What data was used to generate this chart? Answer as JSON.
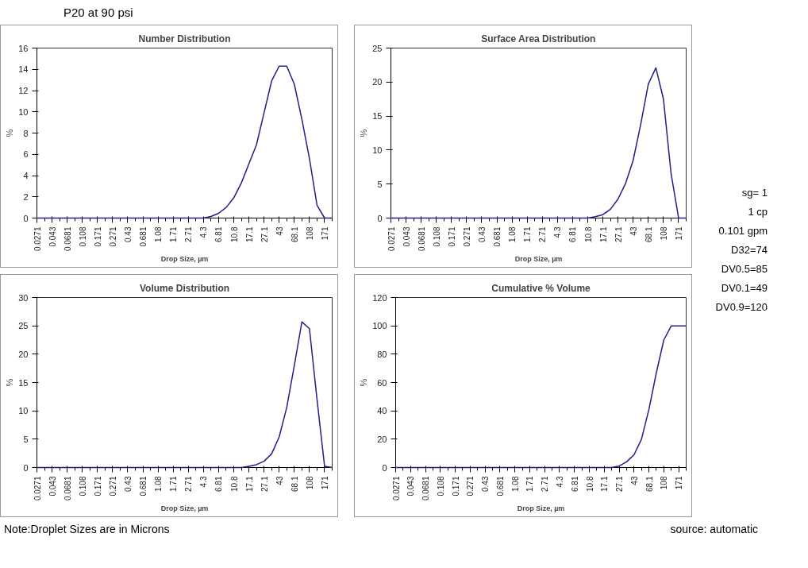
{
  "chart_data": [
    {
      "type": "other",
      "title": "P20 at  90 psi",
      "annotations": [
        "Note:Droplet Sizes are in Microns",
        "source: automatic"
      ]
    },
    {
      "type": "line",
      "title": "Number Distribution",
      "xlabel": "Drop Size, µm",
      "ylabel": "%",
      "categories": [
        "0.0271",
        null,
        "0.043",
        null,
        "0.0681",
        null,
        "0.108",
        null,
        "0.171",
        null,
        "0.271",
        null,
        "0.43",
        null,
        "0.681",
        null,
        "1.08",
        null,
        "1.71",
        null,
        "2.71",
        null,
        "4.3",
        null,
        "6.81",
        null,
        "10.8",
        null,
        "17.1",
        null,
        "27.1",
        null,
        "43",
        null,
        "68.1",
        null,
        "108",
        null,
        "171",
        null
      ],
      "series": [
        {
          "color": "#1f1f8f",
          "values": [
            0,
            0,
            0,
            0,
            0,
            0,
            0,
            0,
            0,
            0,
            0,
            0,
            0,
            0,
            0,
            0,
            0,
            0,
            0,
            0,
            0,
            0,
            0,
            0.15,
            0.45,
            1.0,
            1.9,
            3.3,
            5.1,
            6.9,
            9.9,
            12.9,
            14.3,
            14.3,
            12.6,
            9.3,
            5.6,
            1.2,
            0,
            0
          ]
        }
      ],
      "ylim": [
        0,
        16
      ],
      "yticks": [
        0,
        2,
        4,
        6,
        8,
        10,
        12,
        14,
        16
      ],
      "grid": false,
      "marker": "none",
      "line_style": "solid"
    },
    {
      "type": "line",
      "title": "Surface Area Distribution",
      "xlabel": "Drop Size, µm",
      "ylabel": "%",
      "categories": [
        "0.0271",
        null,
        "0.043",
        null,
        "0.0681",
        null,
        "0.108",
        null,
        "0.171",
        null,
        "0.271",
        null,
        "0.43",
        null,
        "0.681",
        null,
        "1.08",
        null,
        "1.71",
        null,
        "2.71",
        null,
        "4.3",
        null,
        "6.81",
        null,
        "10.8",
        null,
        "17.1",
        null,
        "27.1",
        null,
        "43",
        null,
        "68.1",
        null,
        "108",
        null,
        "171",
        null
      ],
      "series": [
        {
          "color": "#1f1f8f",
          "values": [
            0,
            0,
            0,
            0,
            0,
            0,
            0,
            0,
            0,
            0,
            0,
            0,
            0,
            0,
            0,
            0,
            0,
            0,
            0,
            0,
            0,
            0,
            0,
            0,
            0,
            0,
            0,
            0.2,
            0.5,
            1.3,
            2.8,
            5.1,
            8.5,
            13.8,
            19.7,
            22.1,
            17.5,
            6.6,
            0,
            0
          ]
        }
      ],
      "ylim": [
        0,
        25
      ],
      "yticks": [
        0,
        5,
        10,
        15,
        20,
        25
      ],
      "grid": false,
      "marker": "none",
      "line_style": "solid"
    },
    {
      "type": "other",
      "annotations": [
        "sg= 1",
        "1 cp",
        "0.101 gpm",
        "D32=74",
        "DV0.5=85",
        "DV0.1=49",
        "DV0.9=120"
      ]
    },
    {
      "type": "line",
      "title": "Volume Distribution",
      "xlabel": "Drop Size, µm",
      "ylabel": "%",
      "categories": [
        "0.0271",
        null,
        "0.043",
        null,
        "0.0681",
        null,
        "0.108",
        null,
        "0.171",
        null,
        "0.271",
        null,
        "0.43",
        null,
        "0.681",
        null,
        "1.08",
        null,
        "1.71",
        null,
        "2.71",
        null,
        "4.3",
        null,
        "6.81",
        null,
        "10.8",
        null,
        "17.1",
        null,
        "27.1",
        null,
        "43",
        null,
        "68.1",
        null,
        "108",
        null,
        "171",
        null
      ],
      "series": [
        {
          "color": "#1f1f8f",
          "values": [
            0,
            0,
            0,
            0,
            0,
            0,
            0,
            0,
            0,
            0,
            0,
            0,
            0,
            0,
            0,
            0,
            0,
            0,
            0,
            0,
            0,
            0,
            0,
            0,
            0,
            0,
            0,
            0,
            0.2,
            0.5,
            1.1,
            2.4,
            5.4,
            10.6,
            18.0,
            25.7,
            24.5,
            12.0,
            0.2,
            0
          ]
        }
      ],
      "ylim": [
        0,
        30
      ],
      "yticks": [
        0,
        5,
        10,
        15,
        20,
        25,
        30
      ],
      "grid": false,
      "marker": "none",
      "line_style": "solid"
    },
    {
      "type": "line",
      "title": "Cumulative % Volume",
      "xlabel": "Drop Size, µm",
      "ylabel": "%",
      "categories": [
        "0.0271",
        null,
        "0.043",
        null,
        "0.0681",
        null,
        "0.108",
        null,
        "0.171",
        null,
        "0.271",
        null,
        "0.43",
        null,
        "0.681",
        null,
        "1.08",
        null,
        "1.71",
        null,
        "2.71",
        null,
        "4.3",
        null,
        "6.81",
        null,
        "10.8",
        null,
        "17.1",
        null,
        "27.1",
        null,
        "43",
        null,
        "68.1",
        null,
        "108",
        null,
        "171",
        null
      ],
      "series": [
        {
          "color": "#1f1f8f",
          "values": [
            0,
            0,
            0,
            0,
            0,
            0,
            0,
            0,
            0,
            0,
            0,
            0,
            0,
            0,
            0,
            0,
            0,
            0,
            0,
            0,
            0,
            0,
            0,
            0,
            0,
            0,
            0,
            0,
            0,
            0,
            1,
            4,
            9,
            20,
            41,
            67,
            90,
            100,
            100,
            100
          ]
        }
      ],
      "ylim": [
        0,
        120
      ],
      "yticks": [
        0,
        20,
        40,
        60,
        80,
        100,
        120
      ],
      "grid": false,
      "marker": "none",
      "line_style": "solid"
    }
  ]
}
